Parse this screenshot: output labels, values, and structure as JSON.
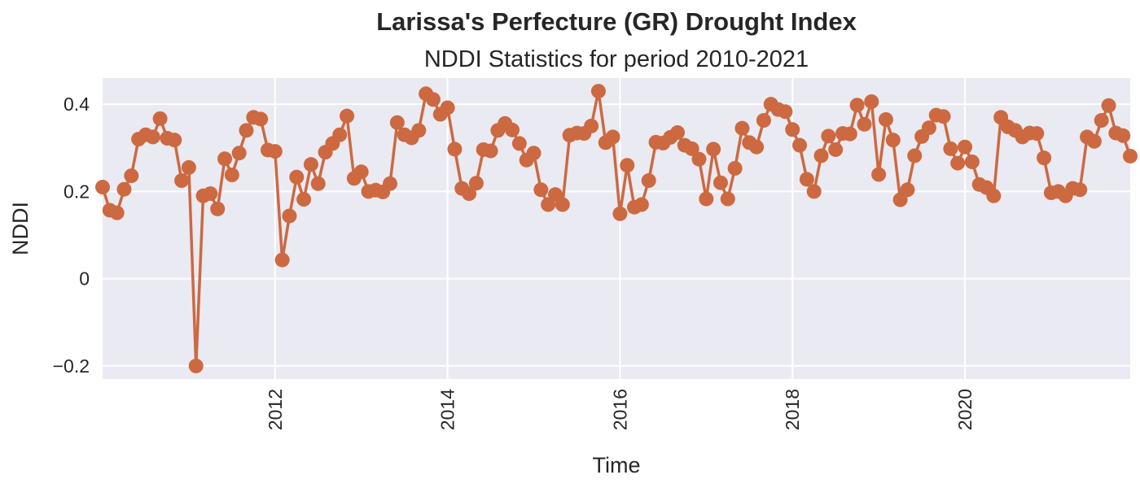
{
  "chart_data": {
    "type": "line",
    "title": "Larissa's Perfecture (GR) Drought Index",
    "subtitle": "NDDI Statistics for period 2010-2021",
    "xlabel": "Time",
    "ylabel": "NDDI",
    "xlim": [
      "2010-01",
      "2021-12"
    ],
    "ylim": [
      -0.23,
      0.46
    ],
    "yticks": [
      -0.2,
      0,
      0.2,
      0.4
    ],
    "ytick_labels": [
      "−0.2",
      "0",
      "0.2",
      "0.4"
    ],
    "xticks": [
      "2012-01",
      "2014-01",
      "2016-01",
      "2018-01",
      "2020-01"
    ],
    "xtick_labels": [
      "2012",
      "2014",
      "2016",
      "2018",
      "2020"
    ],
    "grid": true,
    "colors": {
      "series": "#cc6941",
      "background": "#eaeaf2",
      "grid": "#ffffff"
    },
    "series": [
      {
        "x": [
          "2010-01",
          "2010-02",
          "2010-03",
          "2010-04",
          "2010-05",
          "2010-06",
          "2010-07",
          "2010-08",
          "2010-09",
          "2010-10",
          "2010-11",
          "2010-12",
          "2011-01",
          "2011-02",
          "2011-03",
          "2011-04",
          "2011-05",
          "2011-06",
          "2011-07",
          "2011-08",
          "2011-09",
          "2011-10",
          "2011-11",
          "2011-12",
          "2012-01",
          "2012-02",
          "2012-03",
          "2012-04",
          "2012-05",
          "2012-06",
          "2012-07",
          "2012-08",
          "2012-09",
          "2012-10",
          "2012-11",
          "2012-12",
          "2013-01",
          "2013-02",
          "2013-03",
          "2013-04",
          "2013-05",
          "2013-06",
          "2013-07",
          "2013-08",
          "2013-09",
          "2013-10",
          "2013-11",
          "2013-12",
          "2014-01",
          "2014-02",
          "2014-03",
          "2014-04",
          "2014-05",
          "2014-06",
          "2014-07",
          "2014-08",
          "2014-09",
          "2014-10",
          "2014-11",
          "2014-12",
          "2015-01",
          "2015-02",
          "2015-03",
          "2015-04",
          "2015-05",
          "2015-06",
          "2015-07",
          "2015-08",
          "2015-09",
          "2015-10",
          "2015-11",
          "2015-12",
          "2016-01",
          "2016-02",
          "2016-03",
          "2016-04",
          "2016-05",
          "2016-06",
          "2016-07",
          "2016-08",
          "2016-09",
          "2016-10",
          "2016-11",
          "2016-12",
          "2017-01",
          "2017-02",
          "2017-03",
          "2017-04",
          "2017-05",
          "2017-06",
          "2017-07",
          "2017-08",
          "2017-09",
          "2017-10",
          "2017-11",
          "2017-12",
          "2018-01",
          "2018-02",
          "2018-03",
          "2018-04",
          "2018-05",
          "2018-06",
          "2018-07",
          "2018-08",
          "2018-09",
          "2018-10",
          "2018-11",
          "2018-12",
          "2019-01",
          "2019-02",
          "2019-03",
          "2019-04",
          "2019-05",
          "2019-06",
          "2019-07",
          "2019-08",
          "2019-09",
          "2019-10",
          "2019-11",
          "2019-12",
          "2020-01",
          "2020-02",
          "2020-03",
          "2020-04",
          "2020-05",
          "2020-06",
          "2020-07",
          "2020-08",
          "2020-09",
          "2020-10",
          "2020-11",
          "2020-12",
          "2021-01",
          "2021-02",
          "2021-03",
          "2021-04",
          "2021-05",
          "2021-06",
          "2021-07",
          "2021-08",
          "2021-09",
          "2021-10",
          "2021-11",
          "2021-12"
        ],
        "values": [
          0.21,
          0.157,
          0.151,
          0.205,
          0.236,
          0.32,
          0.33,
          0.325,
          0.367,
          0.322,
          0.318,
          0.225,
          0.255,
          -0.2,
          0.19,
          0.195,
          0.16,
          0.275,
          0.238,
          0.288,
          0.34,
          0.37,
          0.366,
          0.295,
          0.292,
          0.043,
          0.144,
          0.233,
          0.182,
          0.262,
          0.218,
          0.29,
          0.31,
          0.33,
          0.373,
          0.23,
          0.245,
          0.2,
          0.203,
          0.199,
          0.218,
          0.358,
          0.33,
          0.323,
          0.34,
          0.424,
          0.411,
          0.377,
          0.392,
          0.297,
          0.207,
          0.195,
          0.219,
          0.296,
          0.293,
          0.34,
          0.356,
          0.341,
          0.31,
          0.272,
          0.288,
          0.204,
          0.17,
          0.193,
          0.17,
          0.329,
          0.334,
          0.333,
          0.35,
          0.43,
          0.312,
          0.325,
          0.149,
          0.26,
          0.164,
          0.17,
          0.225,
          0.313,
          0.311,
          0.324,
          0.335,
          0.306,
          0.298,
          0.274,
          0.183,
          0.297,
          0.22,
          0.183,
          0.253,
          0.345,
          0.312,
          0.302,
          0.363,
          0.4,
          0.388,
          0.383,
          0.342,
          0.306,
          0.228,
          0.2,
          0.282,
          0.327,
          0.296,
          0.333,
          0.332,
          0.398,
          0.354,
          0.406,
          0.239,
          0.365,
          0.318,
          0.181,
          0.204,
          0.282,
          0.326,
          0.346,
          0.375,
          0.372,
          0.298,
          0.265,
          0.302,
          0.268,
          0.216,
          0.209,
          0.19,
          0.37,
          0.348,
          0.34,
          0.325,
          0.334,
          0.333,
          0.277,
          0.197,
          0.2,
          0.19,
          0.207,
          0.204,
          0.325,
          0.315,
          0.363,
          0.397,
          0.334,
          0.328,
          0.281
        ]
      }
    ]
  }
}
